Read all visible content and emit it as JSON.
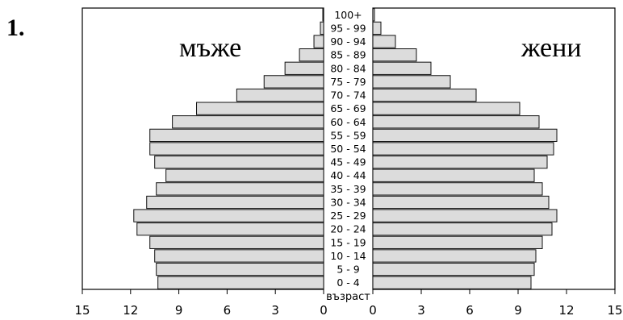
{
  "question_number": "1.",
  "chart_data": {
    "type": "bar",
    "orientation": "horizontal",
    "subtype": "population-pyramid",
    "xlabel": "възраст",
    "xlim": [
      0,
      15
    ],
    "xticks": [
      15,
      12,
      9,
      6,
      3,
      0
    ],
    "categories": [
      "0 - 4",
      "5 - 9",
      "10 - 14",
      "15 - 19",
      "20 - 24",
      "25 - 29",
      "30 - 34",
      "35 - 39",
      "40 - 44",
      "45 - 49",
      "50 - 54",
      "55 - 59",
      "60 - 64",
      "65 - 69",
      "70 - 74",
      "75 - 79",
      "80 - 84",
      "85 - 89",
      "90 - 94",
      "95 - 99",
      "100+"
    ],
    "series": [
      {
        "name": "мъже",
        "side": "left",
        "values": [
          10.3,
          10.4,
          10.5,
          10.8,
          11.6,
          11.8,
          11.0,
          10.4,
          9.8,
          10.5,
          10.8,
          10.8,
          9.4,
          7.9,
          5.4,
          3.7,
          2.4,
          1.5,
          0.6,
          0.2,
          0.05
        ]
      },
      {
        "name": "жени",
        "side": "right",
        "values": [
          9.8,
          10.0,
          10.1,
          10.5,
          11.1,
          11.4,
          10.9,
          10.5,
          10.0,
          10.8,
          11.2,
          11.4,
          10.3,
          9.1,
          6.4,
          4.8,
          3.6,
          2.7,
          1.4,
          0.5,
          0.1
        ]
      }
    ],
    "grid": false,
    "legend": "none"
  }
}
